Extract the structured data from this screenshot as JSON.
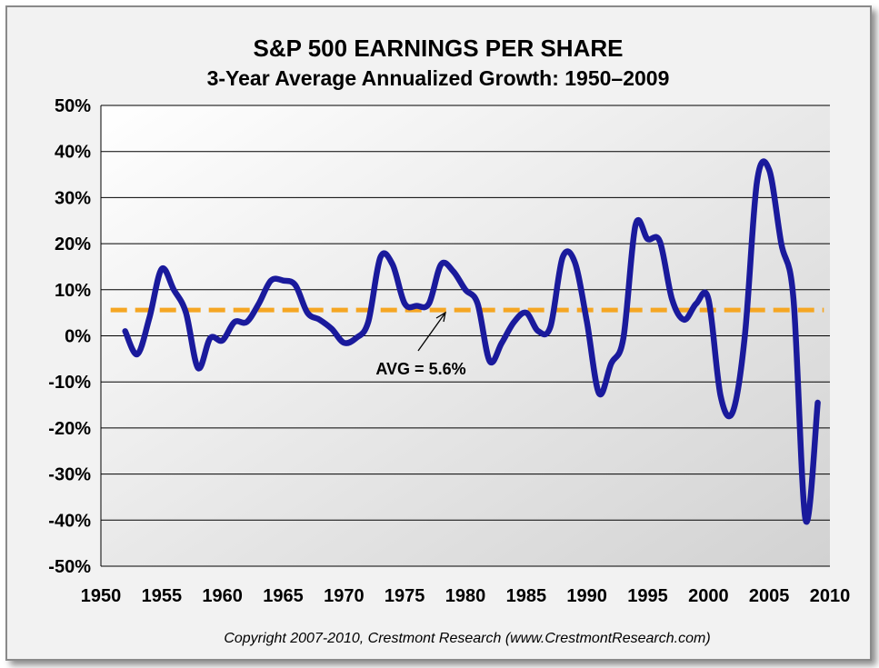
{
  "chart_data": {
    "type": "line",
    "title": "S&P 500 EARNINGS PER SHARE",
    "subtitle": "3-Year Average Annualized Growth: 1950–2009",
    "xlabel": "",
    "ylabel": "",
    "xlim": [
      1950,
      2010
    ],
    "ylim": [
      -50,
      50
    ],
    "x_ticks": [
      1950,
      1955,
      1960,
      1965,
      1970,
      1975,
      1980,
      1985,
      1990,
      1995,
      2000,
      2005,
      2010
    ],
    "y_ticks": [
      50,
      40,
      30,
      20,
      10,
      0,
      -10,
      -20,
      -30,
      -40,
      -50
    ],
    "y_tick_labels": [
      "50%",
      "40%",
      "30%",
      "20%",
      "10%",
      "0%",
      "-10%",
      "-20%",
      "-30%",
      "-40%",
      "-50%"
    ],
    "x_tick_labels": [
      "1950",
      "1955",
      "1960",
      "1965",
      "1970",
      "1975",
      "1980",
      "1985",
      "1990",
      "1995",
      "2000",
      "2005",
      "2010"
    ],
    "grid": true,
    "series": [
      {
        "name": "3-Year Average Annualized Growth",
        "color": "#1a1a9c",
        "x": [
          1952,
          1953,
          1954,
          1955,
          1956,
          1957,
          1958,
          1959,
          1960,
          1961,
          1962,
          1963,
          1964,
          1965,
          1966,
          1967,
          1968,
          1969,
          1970,
          1971,
          1972,
          1973,
          1974,
          1975,
          1976,
          1977,
          1978,
          1979,
          1980,
          1981,
          1982,
          1983,
          1984,
          1985,
          1986,
          1987,
          1988,
          1989,
          1990,
          1991,
          1992,
          1993,
          1994,
          1995,
          1996,
          1997,
          1998,
          1999,
          2000,
          2001,
          2002,
          2003,
          2004,
          2005,
          2006,
          2007,
          2008,
          2009
        ],
        "values": [
          1,
          -4,
          4,
          14.5,
          10,
          5,
          -7,
          -0.5,
          -1,
          3,
          3,
          7,
          12,
          12,
          11,
          5,
          3.5,
          1.5,
          -1.5,
          -0.5,
          3,
          17,
          15.5,
          7,
          6.5,
          7,
          15.5,
          14,
          10,
          7,
          -5.5,
          -1.5,
          3,
          5,
          1,
          2,
          17,
          16,
          3,
          -12.5,
          -6,
          -0.5,
          24,
          21,
          20.5,
          8,
          3.5,
          7,
          8,
          -13,
          -16.5,
          0,
          33.5,
          36,
          20,
          8,
          -40,
          -14.5
        ]
      }
    ],
    "reference_line": {
      "label": "AVG = 5.6%",
      "value": 5.6,
      "color": "#f5a623"
    },
    "copyright": "Copyright 2007-2010, Crestmont Research (www.CrestmontResearch.com)"
  }
}
